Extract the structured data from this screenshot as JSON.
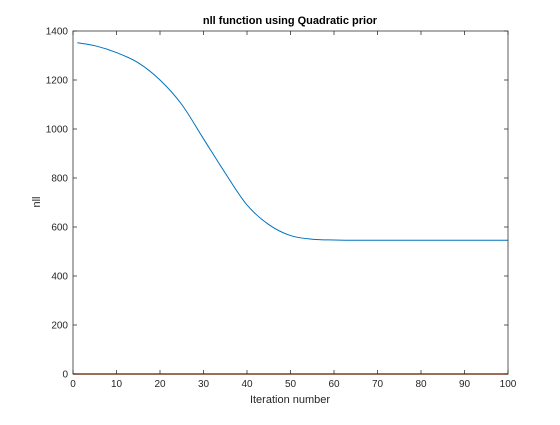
{
  "chart_data": {
    "type": "line",
    "title": "nll function using Quadratic prior",
    "xlabel": "Iteration number",
    "ylabel": "nll",
    "xlim": [
      0,
      100
    ],
    "ylim": [
      0,
      1400
    ],
    "xticks": [
      0,
      10,
      20,
      30,
      40,
      50,
      60,
      70,
      80,
      90,
      100
    ],
    "yticks": [
      0,
      200,
      400,
      600,
      800,
      1000,
      1200,
      1400
    ],
    "grid": false,
    "series": [
      {
        "color": "#0072bd",
        "x": [
          1,
          5,
          10,
          15,
          20,
          25,
          30,
          35,
          40,
          45,
          50,
          55,
          60,
          65,
          70,
          80,
          90,
          100
        ],
        "y": [
          1352,
          1340,
          1312,
          1270,
          1200,
          1100,
          960,
          820,
          690,
          610,
          565,
          550,
          547,
          546,
          546,
          546,
          546,
          546
        ]
      },
      {
        "color": "#d95319",
        "x": [
          0,
          100
        ],
        "y": [
          0,
          0
        ]
      }
    ]
  }
}
